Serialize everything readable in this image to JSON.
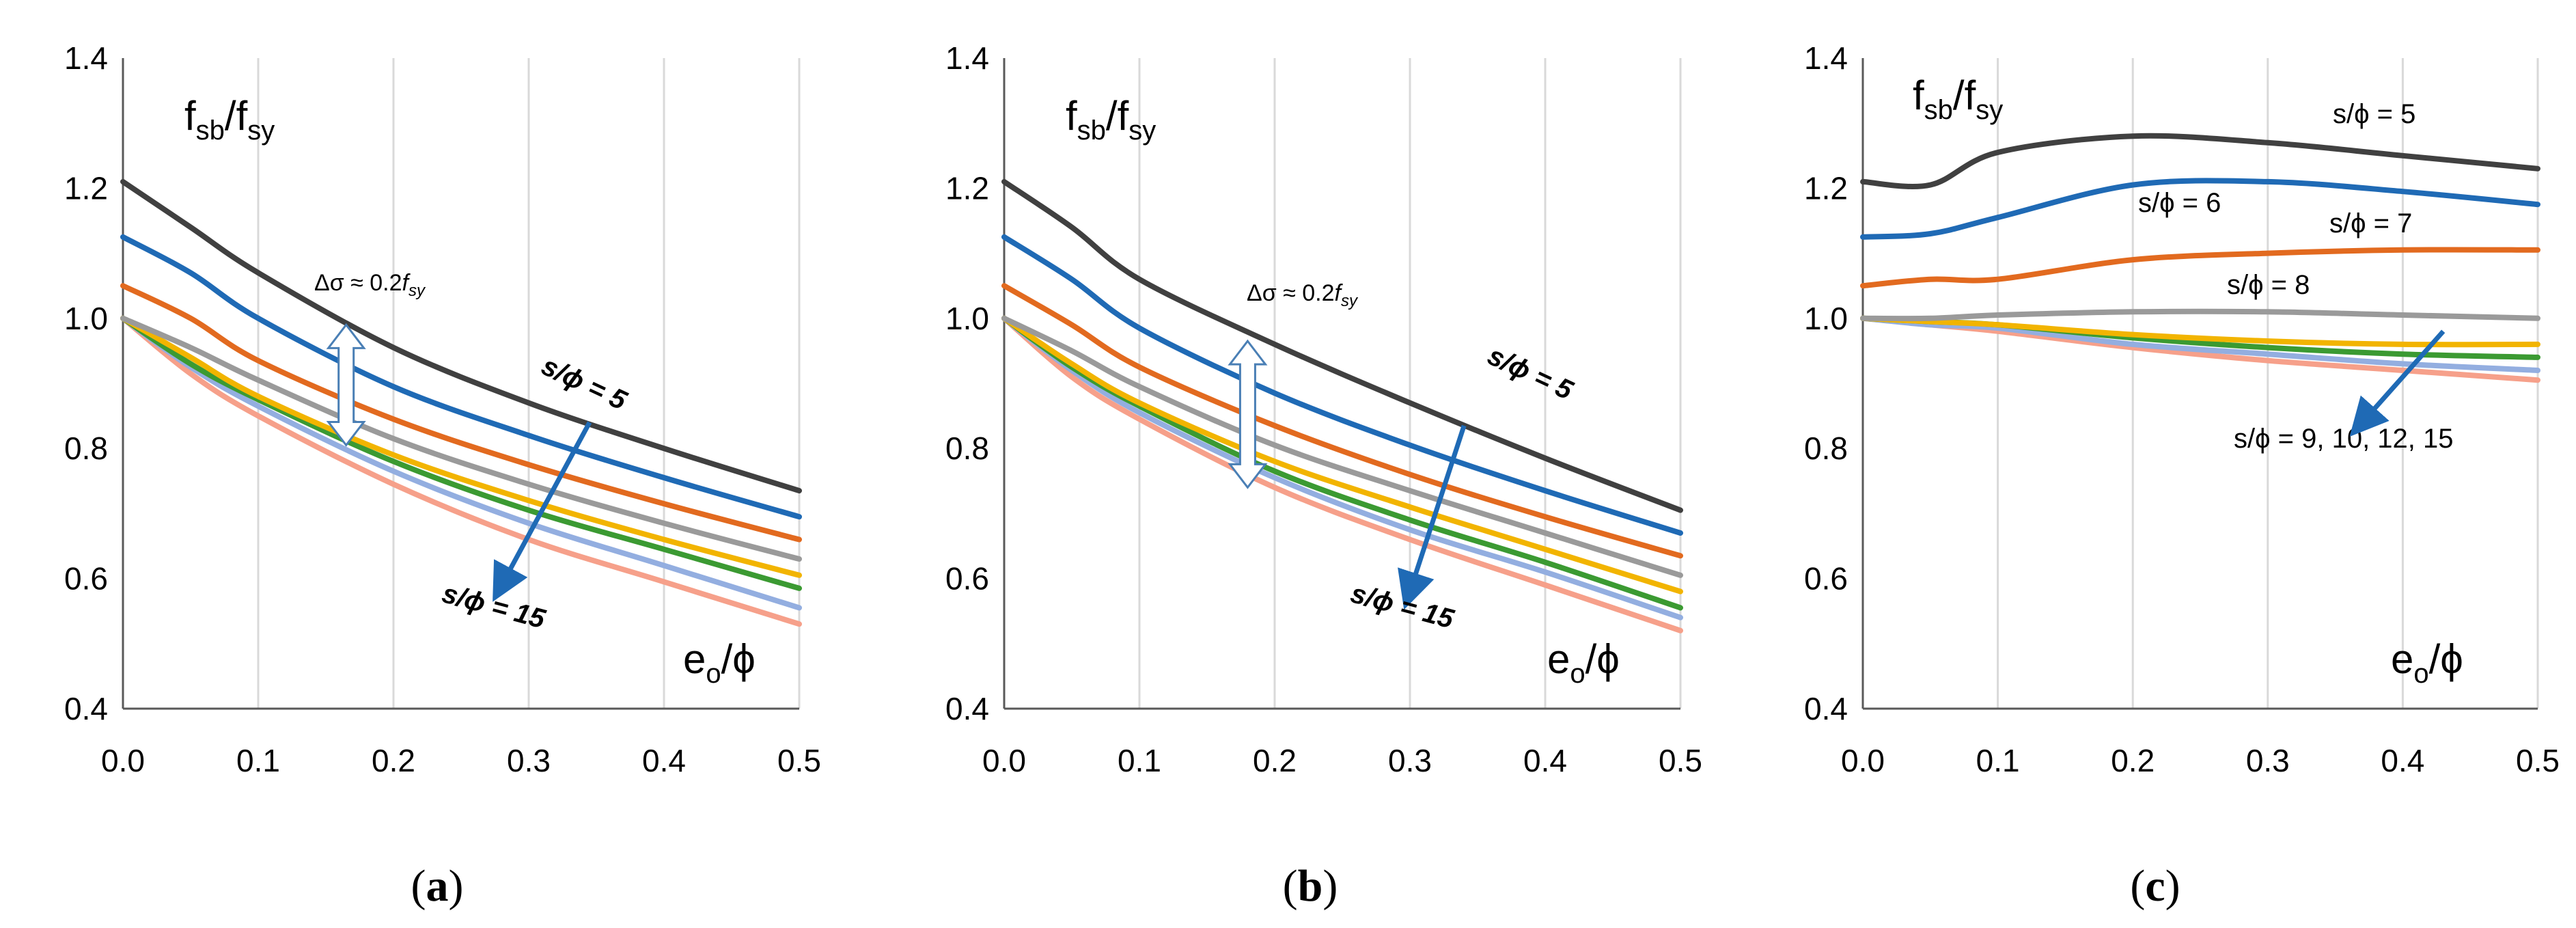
{
  "figure": {
    "panels": [
      {
        "id": "a",
        "caption_letter": "a"
      },
      {
        "id": "b",
        "caption_letter": "b"
      },
      {
        "id": "c",
        "caption_letter": "c"
      }
    ]
  },
  "colors": {
    "series": [
      "#404040",
      "#1f6ab5",
      "#e26a1f",
      "#9a9a9a",
      "#f2b400",
      "#3b9a32",
      "#93aee0",
      "#f6a08a"
    ],
    "arrow": "#1f6ab5",
    "grid": "#d9d9d9",
    "axis": "#595959"
  },
  "chart_data": [
    {
      "id": "a",
      "type": "line",
      "title": "",
      "ylabel_main": "f",
      "ylabel_sub1": "sb",
      "ylabel_slash": "/f",
      "ylabel_sub2": "sy",
      "xlabel_main": "e",
      "xlabel_sub": "o",
      "xlabel_tail": "/ϕ",
      "xlim": [
        0,
        0.5
      ],
      "ylim": [
        0.4,
        1.4
      ],
      "xticks": [
        "0.0",
        "0.1",
        "0.2",
        "0.3",
        "0.4",
        "0.5"
      ],
      "yticks": [
        "0.4",
        "0.6",
        "0.8",
        "1.0",
        "1.2",
        "1.4"
      ],
      "x": [
        0,
        0.05,
        0.1,
        0.2,
        0.3,
        0.4,
        0.5
      ],
      "series": [
        {
          "name": "s/ϕ = 5",
          "values": [
            1.21,
            1.14,
            1.07,
            0.955,
            0.87,
            0.8,
            0.735
          ]
        },
        {
          "name": "s/ϕ = 6",
          "values": [
            1.125,
            1.07,
            1.0,
            0.895,
            0.82,
            0.755,
            0.695
          ]
        },
        {
          "name": "s/ϕ = 7",
          "values": [
            1.05,
            1.0,
            0.935,
            0.845,
            0.775,
            0.715,
            0.66
          ]
        },
        {
          "name": "s/ϕ = 8",
          "values": [
            1.0,
            0.955,
            0.905,
            0.815,
            0.745,
            0.685,
            0.63
          ]
        },
        {
          "name": "s/ϕ = 9",
          "values": [
            1.0,
            0.94,
            0.88,
            0.79,
            0.72,
            0.66,
            0.605
          ]
        },
        {
          "name": "s/ϕ = 10",
          "values": [
            1.0,
            0.93,
            0.875,
            0.78,
            0.705,
            0.645,
            0.585
          ]
        },
        {
          "name": "s/ϕ = 12",
          "values": [
            1.0,
            0.925,
            0.865,
            0.765,
            0.685,
            0.62,
            0.555
          ]
        },
        {
          "name": "s/ϕ = 15",
          "values": [
            1.0,
            0.915,
            0.85,
            0.745,
            0.66,
            0.595,
            0.53
          ]
        }
      ],
      "annotations": {
        "delta_main": "Δσ ≈ 0.2",
        "delta_f": "f",
        "delta_sub": "sy",
        "s5": "s/ϕ = 5",
        "s15": "s/ϕ = 15"
      },
      "delta_range": [
        0.805,
        0.99
      ],
      "delta_x": 0.165,
      "arrow_from": [
        0.345,
        0.84
      ],
      "arrow_to": [
        0.28,
        0.59
      ]
    },
    {
      "id": "b",
      "type": "line",
      "title": "",
      "ylabel_main": "f",
      "ylabel_sub1": "sb",
      "ylabel_slash": "/f",
      "ylabel_sub2": "sy",
      "xlabel_main": "e",
      "xlabel_sub": "o",
      "xlabel_tail": "/ϕ",
      "xlim": [
        0,
        0.5
      ],
      "ylim": [
        0.4,
        1.4
      ],
      "xticks": [
        "0.0",
        "0.1",
        "0.2",
        "0.3",
        "0.4",
        "0.5"
      ],
      "yticks": [
        "0.4",
        "0.6",
        "0.8",
        "1.0",
        "1.2",
        "1.4"
      ],
      "x": [
        0,
        0.05,
        0.1,
        0.2,
        0.3,
        0.4,
        0.5
      ],
      "series": [
        {
          "name": "s/ϕ = 5",
          "values": [
            1.21,
            1.14,
            1.06,
            0.96,
            0.87,
            0.785,
            0.705
          ]
        },
        {
          "name": "s/ϕ = 6",
          "values": [
            1.125,
            1.06,
            0.985,
            0.885,
            0.805,
            0.735,
            0.67
          ]
        },
        {
          "name": "s/ϕ = 7",
          "values": [
            1.05,
            0.99,
            0.925,
            0.835,
            0.76,
            0.695,
            0.635
          ]
        },
        {
          "name": "s/ϕ = 8",
          "values": [
            1.0,
            0.95,
            0.895,
            0.805,
            0.735,
            0.67,
            0.605
          ]
        },
        {
          "name": "s/ϕ = 9",
          "values": [
            1.0,
            0.93,
            0.87,
            0.78,
            0.71,
            0.645,
            0.58
          ]
        },
        {
          "name": "s/ϕ = 10",
          "values": [
            1.0,
            0.925,
            0.865,
            0.765,
            0.69,
            0.625,
            0.555
          ]
        },
        {
          "name": "s/ϕ = 12",
          "values": [
            1.0,
            0.92,
            0.855,
            0.755,
            0.675,
            0.61,
            0.54
          ]
        },
        {
          "name": "s/ϕ = 15",
          "values": [
            1.0,
            0.91,
            0.845,
            0.74,
            0.66,
            0.59,
            0.52
          ]
        }
      ],
      "annotations": {
        "delta_main": "Δσ ≈ 0.2",
        "delta_f": "f",
        "delta_sub": "sy",
        "s5": "s/ϕ = 5",
        "s15": "s/ϕ = 15"
      },
      "delta_range": [
        0.74,
        0.965
      ],
      "delta_x": 0.18,
      "arrow_from": [
        0.34,
        0.835
      ],
      "arrow_to": [
        0.3,
        0.58
      ]
    },
    {
      "id": "c",
      "type": "line",
      "title": "",
      "ylabel_main": "f",
      "ylabel_sub1": "sb",
      "ylabel_slash": "/f",
      "ylabel_sub2": "sy",
      "xlabel_main": "e",
      "xlabel_sub": "o",
      "xlabel_tail": "/ϕ",
      "xlim": [
        0,
        0.5
      ],
      "ylim": [
        0.4,
        1.4
      ],
      "xticks": [
        "0.0",
        "0.1",
        "0.2",
        "0.3",
        "0.4",
        "0.5"
      ],
      "yticks": [
        "0.4",
        "0.6",
        "0.8",
        "1.0",
        "1.2",
        "1.4"
      ],
      "x": [
        0,
        0.05,
        0.1,
        0.2,
        0.3,
        0.4,
        0.5
      ],
      "series": [
        {
          "name": "s/ϕ = 5",
          "values": [
            1.21,
            1.205,
            1.255,
            1.28,
            1.27,
            1.25,
            1.23
          ]
        },
        {
          "name": "s/ϕ = 6",
          "values": [
            1.125,
            1.13,
            1.155,
            1.205,
            1.21,
            1.195,
            1.175
          ]
        },
        {
          "name": "s/ϕ = 7",
          "values": [
            1.05,
            1.06,
            1.06,
            1.09,
            1.1,
            1.105,
            1.105
          ]
        },
        {
          "name": "s/ϕ = 8",
          "values": [
            1.0,
            1.0,
            1.005,
            1.01,
            1.01,
            1.005,
            1.0
          ]
        },
        {
          "name": "s/ϕ = 9",
          "values": [
            1.0,
            0.995,
            0.99,
            0.975,
            0.965,
            0.96,
            0.96
          ]
        },
        {
          "name": "s/ϕ = 10",
          "values": [
            1.0,
            0.995,
            0.99,
            0.97,
            0.955,
            0.945,
            0.94
          ]
        },
        {
          "name": "s/ϕ = 12",
          "values": [
            1.0,
            0.99,
            0.985,
            0.96,
            0.945,
            0.93,
            0.92
          ]
        },
        {
          "name": "s/ϕ = 15",
          "values": [
            1.0,
            0.99,
            0.98,
            0.955,
            0.935,
            0.92,
            0.905
          ]
        }
      ],
      "annotations": {
        "s5": "s/ϕ = 5",
        "s6": "s/ϕ = 6",
        "s7": "s/ϕ = 7",
        "s8": "s/ϕ = 8",
        "s_rest": "s/ϕ = 9, 10, 12, 15"
      },
      "arrow_from": [
        0.43,
        0.98
      ],
      "arrow_to": [
        0.37,
        0.84
      ]
    }
  ]
}
